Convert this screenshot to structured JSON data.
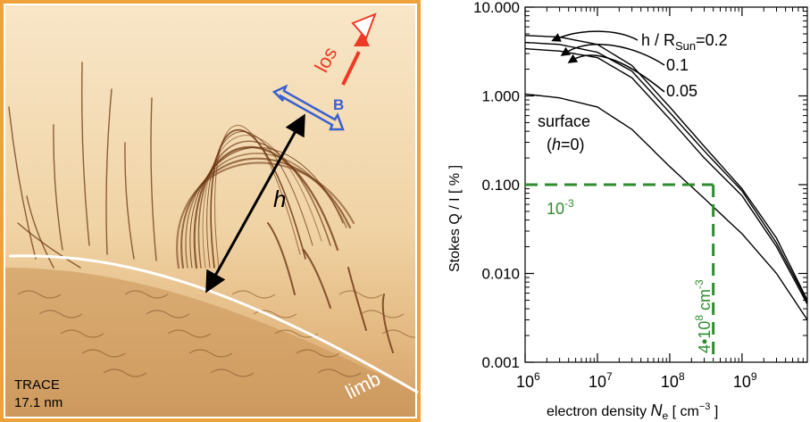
{
  "left_panel": {
    "instrument": "TRACE",
    "wavelength": "17.1 nm",
    "los_label": "los",
    "b_label": "B",
    "h_label": "h",
    "limb_label": "limb"
  },
  "colors": {
    "frame": "#f0a23a",
    "image_bg": "#f3d9b0",
    "loops": "#6b3410",
    "los_arrow": "#ee3a24",
    "b_arrow": "#3a5fcf",
    "limb": "#ffffff",
    "guide": "#2e8b2e",
    "curves": "#000000"
  },
  "chart_data": {
    "type": "line",
    "x_scale": "log",
    "y_scale": "log",
    "xlim": [
      1000000,
      8000000000
    ],
    "ylim": [
      0.001,
      10
    ],
    "xlabel_prefix": "electron density ",
    "xlabel_var": "N",
    "xlabel_sub": "e",
    "xlabel_unit_pre": "  [ cm",
    "xlabel_unit_sup": "−3",
    "xlabel_unit_post": " ]",
    "ylabel": "Stokes  Q / I  [ % ]",
    "y_ticks": [
      "10.000",
      "1.000",
      "0.100",
      "0.010",
      "0.001"
    ],
    "x_ticks": [
      {
        "base": "10",
        "exp": "6"
      },
      {
        "base": "10",
        "exp": "7"
      },
      {
        "base": "10",
        "exp": "8"
      },
      {
        "base": "10",
        "exp": "9"
      }
    ],
    "curve_labels": {
      "h02_prefix": "h / R",
      "h02_sub": "Sun",
      "h02_suffix": "=0.2",
      "h01": "0.1",
      "h005": "0.05",
      "surface_line1": "surface",
      "surface_line2": "(h=0)"
    },
    "series": [
      {
        "name": "h / RSun=0.2",
        "x": [
          1000000.0,
          3000000.0,
          10000000.0,
          30000000.0,
          100000000.0,
          300000000.0,
          1000000000.0,
          3000000000.0,
          8000000000.0
        ],
        "y": [
          4.8,
          4.6,
          3.8,
          2.2,
          0.75,
          0.27,
          0.09,
          0.025,
          0.005
        ]
      },
      {
        "name": "0.1",
        "x": [
          1000000.0,
          3000000.0,
          10000000.0,
          30000000.0,
          100000000.0,
          300000000.0,
          1000000000.0,
          3000000000.0,
          8000000000.0
        ],
        "y": [
          4.0,
          3.8,
          3.1,
          1.9,
          0.65,
          0.24,
          0.085,
          0.022,
          0.0048
        ]
      },
      {
        "name": "0.05",
        "x": [
          1000000.0,
          3000000.0,
          10000000.0,
          30000000.0,
          100000000.0,
          300000000.0,
          1000000000.0,
          3000000000.0,
          8000000000.0
        ],
        "y": [
          3.4,
          3.2,
          2.7,
          1.6,
          0.55,
          0.2,
          0.075,
          0.02,
          0.0045
        ]
      },
      {
        "name": "surface (h=0)",
        "x": [
          1000000.0,
          3000000.0,
          10000000.0,
          30000000.0,
          100000000.0,
          300000000.0,
          1000000000.0,
          3000000000.0,
          8000000000.0
        ],
        "y": [
          1.05,
          0.95,
          0.75,
          0.42,
          0.16,
          0.07,
          0.028,
          0.01,
          0.003
        ]
      }
    ],
    "guide": {
      "y_value": 0.1,
      "x_value": 400000000,
      "y_label_base": "10",
      "y_label_exp": "-3",
      "x_label_pre": "4•10",
      "x_label_exp": "8",
      "x_label_unit": " cm",
      "x_label_unit_exp": "-3"
    }
  }
}
